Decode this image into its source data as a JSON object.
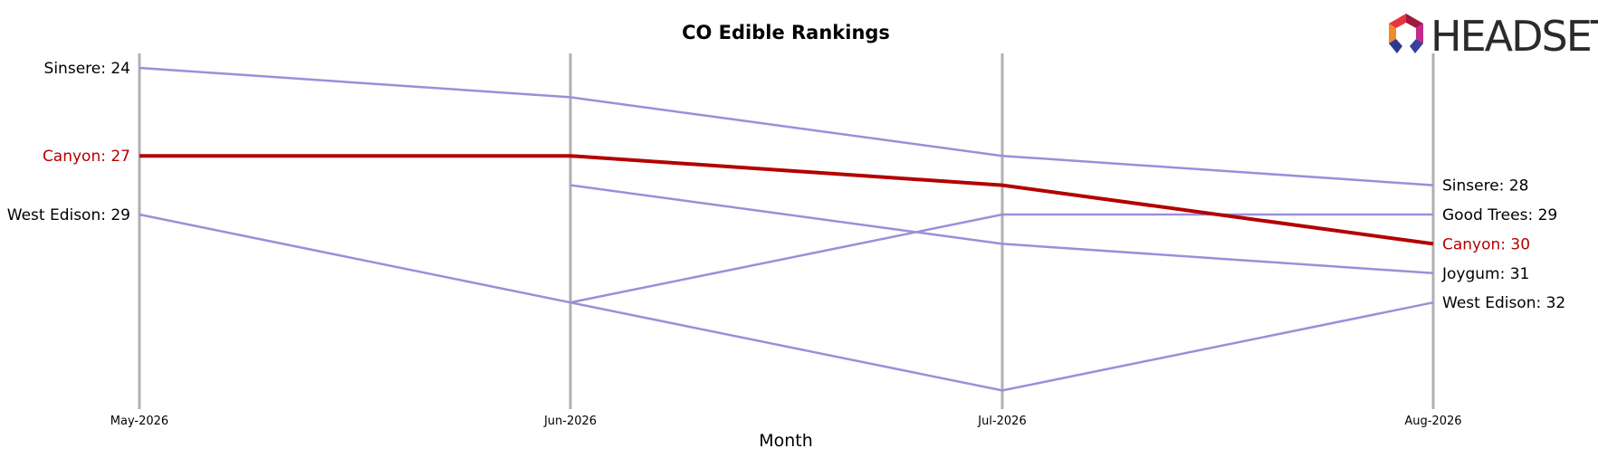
{
  "chart_data": {
    "type": "line",
    "title": "CO Edible Rankings",
    "xlabel": "Month",
    "ylabel": "",
    "categories": [
      "May-2026",
      "Jun-2026",
      "Jul-2026",
      "Aug-2026"
    ],
    "ylim": [
      23.5,
      35.5
    ],
    "y_inverted": true,
    "grid": false,
    "highlight_color": "#b30000",
    "series_color": "#9b8fd9",
    "axis_line_color": "#b0b0b0",
    "series": [
      {
        "name": "Sinsere",
        "values": [
          24,
          25,
          27,
          28
        ],
        "highlight": false,
        "start_label": "Sinsere: 24",
        "end_label": "Sinsere: 28"
      },
      {
        "name": "Canyon",
        "values": [
          27,
          27,
          28,
          30
        ],
        "highlight": true,
        "start_label": "Canyon: 27",
        "end_label": "Canyon: 30"
      },
      {
        "name": "West Edison",
        "values": [
          29,
          32,
          35,
          32
        ],
        "highlight": false,
        "start_label": "West Edison: 29",
        "end_label": "West Edison: 32"
      },
      {
        "name": "Good Trees",
        "values": [
          null,
          32,
          29,
          29
        ],
        "highlight": false,
        "start_label": "",
        "end_label": "Good Trees: 29"
      },
      {
        "name": "Joygum",
        "values": [
          null,
          28,
          30,
          31
        ],
        "highlight": false,
        "start_label": "",
        "end_label": "Joygum: 31"
      }
    ]
  },
  "logo": {
    "text": "HEADSET",
    "icon": "headset-hexagon-logo-icon"
  }
}
